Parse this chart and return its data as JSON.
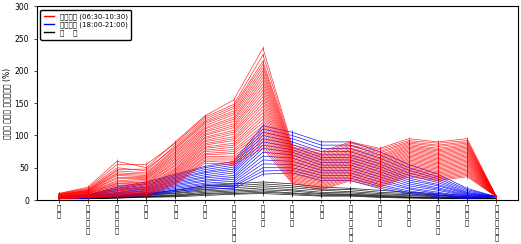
{
  "stations": [
    "개화",
    "김포공항",
    "마곡나루",
    "가양",
    "염창",
    "당산",
    "국회의사당",
    "여의도",
    "노량진",
    "동작",
    "고속터미널",
    "신논현",
    "선정릉",
    "삼성중앙",
    "봉은사",
    "종합운동장"
  ],
  "station_labels": [
    "개\n화",
    "김\n포\n공\n항",
    "마\n곡\n나\n루",
    "가\n양",
    "염\n창",
    "당\n산",
    "국\n회\n의\n사\n당",
    "여\n의\n도",
    "노\n량\n진",
    "동\n작",
    "고\n속\n터\n미\n널",
    "신\n논\n현",
    "선\n정\n릉",
    "삼\n성\n중\n앙",
    "봉\n은\n사",
    "종\n합\n운\n동\n장"
  ],
  "y_label": "열차별 구간별 차내혼잡도 (%)",
  "y_ticks": [
    0,
    50,
    100,
    150,
    200,
    250,
    300
  ],
  "ylim": [
    0,
    300
  ],
  "legend": [
    "오전첨두 (06:30-10:30)",
    "오후첨두 (18:00-21:00)",
    "평    시"
  ],
  "legend_colors": [
    "red",
    "blue",
    "black"
  ],
  "background_color": "#ffffff",
  "red_profiles": [
    [
      10,
      20,
      60,
      50,
      90,
      130,
      155,
      235,
      85,
      75,
      90,
      80,
      95,
      90,
      95,
      5
    ],
    [
      10,
      18,
      55,
      55,
      88,
      128,
      148,
      225,
      82,
      72,
      88,
      78,
      92,
      88,
      92,
      5
    ],
    [
      9,
      17,
      50,
      45,
      85,
      125,
      145,
      215,
      80,
      70,
      85,
      75,
      90,
      85,
      90,
      5
    ],
    [
      9,
      16,
      47,
      48,
      82,
      122,
      142,
      210,
      78,
      68,
      83,
      73,
      88,
      83,
      88,
      5
    ],
    [
      8,
      15,
      45,
      42,
      80,
      120,
      138,
      205,
      76,
      66,
      80,
      70,
      86,
      80,
      86,
      5
    ],
    [
      8,
      15,
      42,
      40,
      78,
      118,
      135,
      200,
      74,
      64,
      78,
      68,
      84,
      78,
      84,
      5
    ],
    [
      8,
      14,
      40,
      38,
      75,
      115,
      132,
      195,
      72,
      62,
      76,
      66,
      82,
      76,
      82,
      5
    ],
    [
      7,
      14,
      38,
      36,
      73,
      112,
      128,
      190,
      70,
      60,
      74,
      64,
      80,
      74,
      80,
      5
    ],
    [
      7,
      13,
      35,
      35,
      70,
      110,
      125,
      185,
      68,
      58,
      72,
      62,
      78,
      72,
      78,
      5
    ],
    [
      7,
      13,
      33,
      33,
      68,
      107,
      122,
      180,
      66,
      56,
      70,
      60,
      76,
      70,
      76,
      5
    ],
    [
      6,
      12,
      30,
      32,
      65,
      105,
      118,
      175,
      64,
      54,
      68,
      58,
      74,
      68,
      74,
      5
    ],
    [
      6,
      12,
      28,
      30,
      63,
      102,
      115,
      170,
      62,
      52,
      66,
      56,
      72,
      66,
      72,
      5
    ],
    [
      6,
      11,
      26,
      28,
      60,
      100,
      112,
      165,
      60,
      50,
      64,
      54,
      70,
      64,
      70,
      5
    ],
    [
      5,
      11,
      25,
      27,
      58,
      97,
      108,
      160,
      58,
      48,
      62,
      52,
      68,
      62,
      68,
      5
    ],
    [
      5,
      10,
      23,
      25,
      55,
      95,
      105,
      155,
      56,
      46,
      60,
      50,
      66,
      60,
      66,
      5
    ],
    [
      5,
      10,
      22,
      24,
      53,
      92,
      102,
      150,
      54,
      44,
      58,
      48,
      64,
      58,
      64,
      5
    ],
    [
      5,
      9,
      20,
      22,
      50,
      90,
      98,
      145,
      52,
      42,
      56,
      46,
      62,
      56,
      62,
      5
    ],
    [
      4,
      9,
      18,
      20,
      48,
      87,
      95,
      140,
      50,
      40,
      54,
      44,
      60,
      54,
      60,
      5
    ],
    [
      4,
      8,
      17,
      19,
      46,
      85,
      92,
      135,
      48,
      38,
      52,
      42,
      58,
      52,
      58,
      5
    ],
    [
      4,
      8,
      15,
      18,
      44,
      82,
      88,
      130,
      46,
      36,
      50,
      40,
      56,
      50,
      56,
      5
    ],
    [
      4,
      7,
      14,
      17,
      42,
      80,
      85,
      125,
      44,
      34,
      48,
      38,
      54,
      48,
      54,
      5
    ],
    [
      3,
      7,
      12,
      15,
      40,
      77,
      82,
      120,
      42,
      32,
      46,
      36,
      52,
      46,
      52,
      5
    ],
    [
      3,
      6,
      11,
      14,
      38,
      75,
      78,
      115,
      40,
      30,
      44,
      34,
      50,
      44,
      50,
      5
    ],
    [
      3,
      6,
      10,
      13,
      36,
      72,
      75,
      110,
      38,
      28,
      42,
      32,
      48,
      42,
      48,
      5
    ],
    [
      3,
      5,
      9,
      12,
      34,
      70,
      72,
      105,
      36,
      26,
      40,
      30,
      46,
      40,
      46,
      5
    ],
    [
      3,
      5,
      8,
      11,
      32,
      67,
      68,
      100,
      34,
      24,
      38,
      28,
      44,
      38,
      44,
      5
    ],
    [
      2,
      5,
      7,
      10,
      30,
      65,
      65,
      95,
      32,
      22,
      36,
      26,
      42,
      36,
      42,
      5
    ],
    [
      2,
      4,
      7,
      9,
      28,
      62,
      62,
      90,
      30,
      20,
      34,
      24,
      40,
      34,
      40,
      5
    ],
    [
      2,
      4,
      6,
      8,
      26,
      60,
      58,
      85,
      28,
      18,
      32,
      22,
      38,
      32,
      38,
      5
    ],
    [
      2,
      4,
      5,
      7,
      24,
      57,
      55,
      80,
      26,
      16,
      30,
      20,
      36,
      30,
      36,
      5
    ]
  ],
  "blue_profiles": [
    [
      5,
      8,
      20,
      28,
      40,
      52,
      60,
      115,
      105,
      90,
      90,
      75,
      55,
      40,
      18,
      5
    ],
    [
      5,
      8,
      18,
      26,
      38,
      50,
      57,
      110,
      100,
      85,
      85,
      70,
      50,
      36,
      16,
      5
    ],
    [
      4,
      7,
      17,
      24,
      36,
      47,
      54,
      105,
      95,
      80,
      80,
      65,
      46,
      33,
      14,
      5
    ],
    [
      4,
      7,
      15,
      22,
      34,
      44,
      51,
      100,
      90,
      75,
      75,
      60,
      42,
      30,
      12,
      5
    ],
    [
      4,
      6,
      14,
      20,
      32,
      42,
      48,
      95,
      86,
      70,
      70,
      56,
      38,
      27,
      11,
      5
    ],
    [
      3,
      6,
      12,
      18,
      30,
      39,
      45,
      90,
      82,
      66,
      66,
      52,
      34,
      24,
      10,
      5
    ],
    [
      3,
      5,
      11,
      17,
      28,
      36,
      42,
      85,
      78,
      62,
      62,
      48,
      31,
      22,
      9,
      5
    ],
    [
      3,
      5,
      10,
      15,
      26,
      34,
      38,
      80,
      74,
      58,
      58,
      44,
      28,
      19,
      8,
      5
    ],
    [
      3,
      5,
      9,
      14,
      24,
      31,
      35,
      74,
      70,
      54,
      54,
      40,
      25,
      17,
      7,
      5
    ],
    [
      2,
      4,
      8,
      12,
      22,
      29,
      32,
      68,
      65,
      50,
      50,
      36,
      22,
      15,
      6,
      5
    ],
    [
      2,
      4,
      7,
      11,
      20,
      26,
      29,
      62,
      60,
      46,
      46,
      32,
      19,
      12,
      5,
      5
    ],
    [
      2,
      4,
      7,
      10,
      18,
      24,
      26,
      56,
      55,
      42,
      42,
      28,
      17,
      10,
      4,
      5
    ],
    [
      2,
      3,
      6,
      9,
      16,
      22,
      23,
      50,
      50,
      38,
      38,
      24,
      14,
      8,
      3,
      5
    ],
    [
      2,
      3,
      5,
      8,
      15,
      20,
      21,
      45,
      46,
      34,
      34,
      21,
      12,
      7,
      3,
      5
    ],
    [
      2,
      3,
      5,
      7,
      13,
      17,
      18,
      40,
      42,
      30,
      30,
      18,
      10,
      5,
      2,
      5
    ]
  ],
  "black_profiles": [
    [
      2,
      4,
      7,
      10,
      15,
      22,
      25,
      28,
      25,
      20,
      18,
      15,
      12,
      10,
      7,
      2
    ],
    [
      2,
      3,
      6,
      9,
      13,
      19,
      22,
      25,
      22,
      17,
      16,
      12,
      10,
      8,
      5,
      2
    ],
    [
      2,
      3,
      5,
      8,
      11,
      16,
      19,
      22,
      19,
      15,
      13,
      10,
      8,
      7,
      4,
      2
    ],
    [
      2,
      3,
      5,
      7,
      10,
      14,
      16,
      19,
      16,
      12,
      11,
      8,
      7,
      5,
      3,
      2
    ],
    [
      2,
      2,
      4,
      6,
      8,
      12,
      14,
      16,
      14,
      10,
      9,
      7,
      5,
      4,
      3,
      2
    ],
    [
      2,
      2,
      4,
      5,
      7,
      10,
      12,
      14,
      11,
      9,
      8,
      6,
      4,
      3,
      2,
      2
    ],
    [
      2,
      2,
      3,
      5,
      6,
      9,
      10,
      12,
      10,
      7,
      7,
      5,
      4,
      3,
      2,
      2
    ],
    [
      2,
      2,
      3,
      4,
      5,
      7,
      9,
      10,
      8,
      6,
      6,
      4,
      3,
      2,
      2,
      2
    ]
  ]
}
